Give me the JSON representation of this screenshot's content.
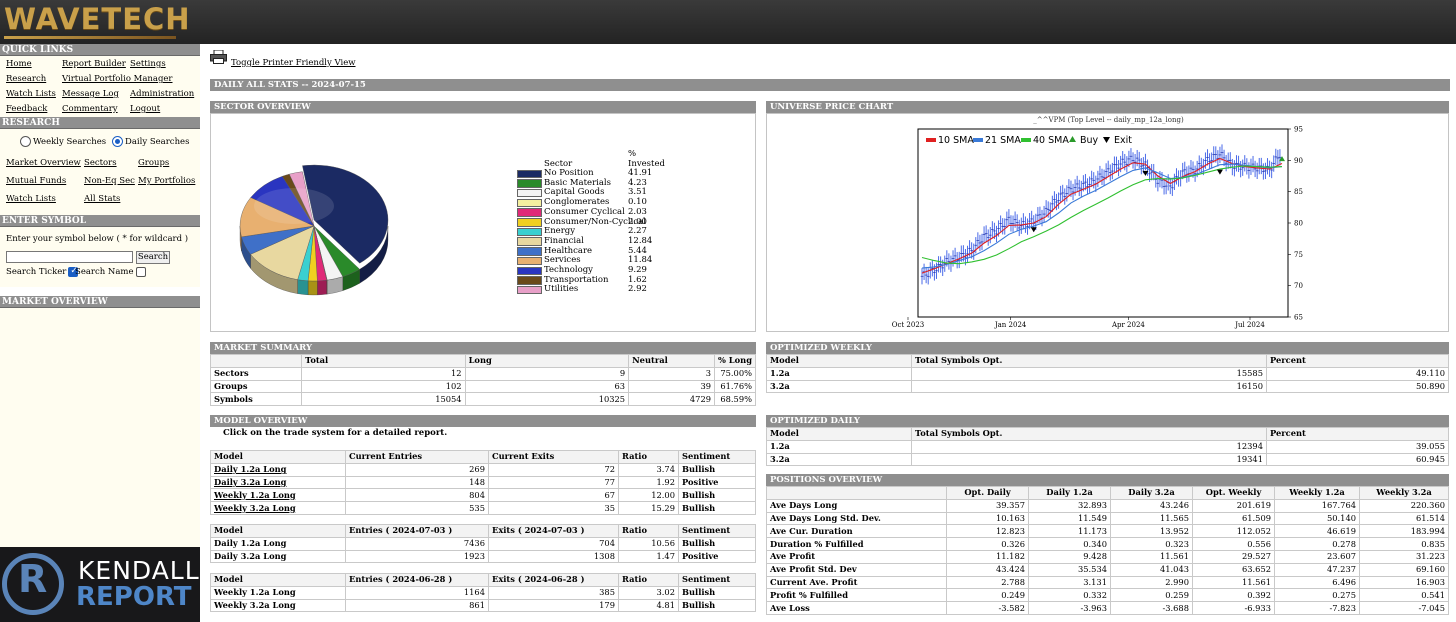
{
  "header": {
    "logo": "WAVETECH"
  },
  "sidebar": {
    "quick_links_title": "QUICK LINKS",
    "quick_links": [
      "Home",
      "Report Builder",
      "Settings",
      "Research",
      "Virtual Portfolio Manager",
      "Watch Lists",
      "Message Log",
      "Administration",
      "Feedback",
      "Commentary",
      "Logout"
    ],
    "research_title": "RESEARCH",
    "weekly_label": "Weekly Searches",
    "daily_label": "Daily Searches",
    "research_links": [
      "Market Overview",
      "Sectors",
      "Groups",
      "Mutual Funds",
      "Non-Eq Sec",
      "My Portfolios",
      "Watch Lists",
      "All Stats"
    ],
    "enter_symbol_title": "ENTER SYMBOL",
    "enter_symbol_hint": "Enter your symbol below ( * for wildcard )",
    "search_button": "Search",
    "search_ticker_label": "Search Ticker",
    "search_name_label": "Search Name",
    "market_overview_title": "MARKET OVERVIEW",
    "promo_line1": "KENDALL",
    "promo_line2": "REPORT",
    "promo_logo_letter": "R"
  },
  "main": {
    "printer_link": "Toggle Printer Friendly View",
    "daily_title": "DAILY ALL STATS -- 2024-07-15",
    "sector_overview": {
      "title": "SECTOR OVERVIEW",
      "col1": "Sector",
      "col2_line1": "%",
      "col2_line2": "Invested",
      "rows": [
        {
          "name": "No Position",
          "value": "41.91",
          "color": "#1b2a63"
        },
        {
          "name": "Basic Materials",
          "value": "4.23",
          "color": "#2a8a2a"
        },
        {
          "name": "Capital Goods",
          "value": "3.51",
          "color": "#f4f4f4"
        },
        {
          "name": "Conglomerates",
          "value": "0.10",
          "color": "#f5f0a0"
        },
        {
          "name": "Consumer Cyclical",
          "value": "2.03",
          "color": "#e02a78"
        },
        {
          "name": "Consumer/Non-Cyclical",
          "value": "2.00",
          "color": "#f0d020"
        },
        {
          "name": "Energy",
          "value": "2.27",
          "color": "#3ad0d0"
        },
        {
          "name": "Financial",
          "value": "12.84",
          "color": "#e8d8a0"
        },
        {
          "name": "Healthcare",
          "value": "5.44",
          "color": "#3f70c8"
        },
        {
          "name": "Services",
          "value": "11.84",
          "color": "#e8b070"
        },
        {
          "name": "Technology",
          "value": "9.29",
          "color": "#2a35c0"
        },
        {
          "name": "Transportation",
          "value": "1.62",
          "color": "#6a4a1a"
        },
        {
          "name": "Utilities",
          "value": "2.92",
          "color": "#e8a0c8"
        }
      ]
    },
    "universe_chart": {
      "title": "UNIVERSE PRICE CHART",
      "subtitle": "_^^VPM (Top Level -- daily_mp_12a_long)"
    },
    "market_summary": {
      "title": "MARKET SUMMARY",
      "headers": [
        "",
        "Total",
        "Long",
        "Neutral",
        "% Long"
      ],
      "rows": [
        [
          "Sectors",
          "12",
          "9",
          "3",
          "75.00%"
        ],
        [
          "Groups",
          "102",
          "63",
          "39",
          "61.76%"
        ],
        [
          "Symbols",
          "15054",
          "10325",
          "4729",
          "68.59%"
        ]
      ]
    },
    "optimized_weekly": {
      "title": "OPTIMIZED WEEKLY",
      "headers": [
        "Model",
        "Total Symbols Opt.",
        "Percent"
      ],
      "rows": [
        [
          "1.2a",
          "15585",
          "49.110"
        ],
        [
          "3.2a",
          "16150",
          "50.890"
        ]
      ]
    },
    "model_overview": {
      "title": "MODEL OVERVIEW",
      "note": "Click on the trade system for a detailed report.",
      "table1": {
        "headers": [
          "Model",
          "Current Entries",
          "Current Exits",
          "Ratio",
          "Sentiment"
        ],
        "rows": [
          [
            "Daily 1.2a Long",
            "269",
            "72",
            "3.74",
            "Bullish"
          ],
          [
            "Daily 3.2a Long",
            "148",
            "77",
            "1.92",
            "Positive"
          ],
          [
            "Weekly 1.2a Long",
            "804",
            "67",
            "12.00",
            "Bullish"
          ],
          [
            "Weekly 3.2a Long",
            "535",
            "35",
            "15.29",
            "Bullish"
          ]
        ]
      },
      "table2": {
        "headers": [
          "Model",
          "Entries ( 2024-07-03 )",
          "Exits ( 2024-07-03 )",
          "Ratio",
          "Sentiment"
        ],
        "rows": [
          [
            "Daily 1.2a Long",
            "7436",
            "704",
            "10.56",
            "Bullish"
          ],
          [
            "Daily 3.2a Long",
            "1923",
            "1308",
            "1.47",
            "Positive"
          ]
        ]
      },
      "table3": {
        "headers": [
          "Model",
          "Entries ( 2024-06-28 )",
          "Exits ( 2024-06-28 )",
          "Ratio",
          "Sentiment"
        ],
        "rows": [
          [
            "Weekly 1.2a Long",
            "1164",
            "385",
            "3.02",
            "Bullish"
          ],
          [
            "Weekly 3.2a Long",
            "861",
            "179",
            "4.81",
            "Bullish"
          ]
        ]
      }
    },
    "optimized_daily": {
      "title": "OPTIMIZED DAILY",
      "headers": [
        "Model",
        "Total Symbols Opt.",
        "Percent"
      ],
      "rows": [
        [
          "1.2a",
          "12394",
          "39.055"
        ],
        [
          "3.2a",
          "19341",
          "60.945"
        ]
      ]
    },
    "positions_overview": {
      "title": "POSITIONS OVERVIEW",
      "headers": [
        "",
        "Opt. Daily",
        "Daily 1.2a",
        "Daily 3.2a",
        "Opt. Weekly",
        "Weekly 1.2a",
        "Weekly 3.2a"
      ],
      "rows": [
        [
          "Ave Days Long",
          "39.357",
          "32.893",
          "43.246",
          "201.619",
          "167.764",
          "220.360"
        ],
        [
          "Ave Days Long Std. Dev.",
          "10.163",
          "11.549",
          "11.565",
          "61.509",
          "50.140",
          "61.514"
        ],
        [
          "Ave Cur. Duration",
          "12.823",
          "11.173",
          "13.952",
          "112.052",
          "46.619",
          "183.994"
        ],
        [
          "Duration % Fulfilled",
          "0.326",
          "0.340",
          "0.323",
          "0.556",
          "0.278",
          "0.835"
        ],
        [
          "Ave Profit",
          "11.182",
          "9.428",
          "11.561",
          "29.527",
          "23.607",
          "31.223"
        ],
        [
          "Ave Profit Std. Dev",
          "43.424",
          "35.534",
          "41.043",
          "63.652",
          "47.237",
          "69.160"
        ],
        [
          "Current Ave. Profit",
          "2.788",
          "3.131",
          "2.990",
          "11.561",
          "6.496",
          "16.903"
        ],
        [
          "Profit % Fulfilled",
          "0.249",
          "0.332",
          "0.259",
          "0.392",
          "0.275",
          "0.541"
        ],
        [
          "Ave Loss",
          "-3.582",
          "-3.963",
          "-3.688",
          "-6.933",
          "-7.823",
          "-7.045"
        ]
      ]
    }
  },
  "chart_data": {
    "type": "line",
    "title": "_^^VPM (Top Level -- daily_mp_12a_long)",
    "x_ticks": [
      "Oct 2023",
      "Jan 2024",
      "Apr 2024",
      "Jul 2024"
    ],
    "y_ticks": [
      65,
      70,
      75,
      80,
      85,
      90,
      95
    ],
    "ylim": [
      65,
      95
    ],
    "legend": [
      "10 SMA",
      "21 SMA",
      "40 SMA",
      "Buy",
      "Exit"
    ],
    "legend_placement": "top-left",
    "series_colors": {
      "price": "#3355dd",
      "sma10": "#e02020",
      "sma21": "#3a7ad8",
      "sma40": "#30c030",
      "buy": "#2a9a2a",
      "exit": "#000000"
    },
    "series": [
      {
        "name": "price",
        "values": [
          71.5,
          72.5,
          73.8,
          74.5,
          75.6,
          77.8,
          78.8,
          80.5,
          79.6,
          80.3,
          81.8,
          84.0,
          85.4,
          86.0,
          86.8,
          88.2,
          89.5,
          90.3,
          89.2,
          86.8,
          85.8,
          88.0,
          88.4,
          90.0,
          91.0,
          89.2,
          89.0,
          88.8,
          88.5,
          91.5
        ]
      },
      {
        "name": "10 SMA",
        "values": [
          72.0,
          72.7,
          73.5,
          74.3,
          75.2,
          76.8,
          78.0,
          79.6,
          79.7,
          80.0,
          81.0,
          83.0,
          84.6,
          85.4,
          86.2,
          87.4,
          88.6,
          89.6,
          89.4,
          87.5,
          86.3,
          87.4,
          88.2,
          89.4,
          90.3,
          89.5,
          89.0,
          88.8,
          88.6,
          89.5
        ]
      },
      {
        "name": "21 SMA",
        "values": [
          72.8,
          73.0,
          73.4,
          74.0,
          74.6,
          75.6,
          76.8,
          78.2,
          79.0,
          79.5,
          80.2,
          81.6,
          83.2,
          84.3,
          85.2,
          86.3,
          87.4,
          88.4,
          88.8,
          88.0,
          87.1,
          87.3,
          87.7,
          88.5,
          89.3,
          89.4,
          89.2,
          89.0,
          88.8,
          89.0
        ]
      },
      {
        "name": "40 SMA",
        "values": [
          74.5,
          74.0,
          73.6,
          73.5,
          73.8,
          74.2,
          74.9,
          75.9,
          77.0,
          77.8,
          78.7,
          79.7,
          80.9,
          82.0,
          83.0,
          84.0,
          85.1,
          86.1,
          86.9,
          87.1,
          87.0,
          87.2,
          87.6,
          88.1,
          88.6,
          88.9,
          89.1,
          89.0,
          88.9,
          89.0
        ]
      }
    ],
    "exit_markers": [
      {
        "index": 9,
        "value": 79.0
      },
      {
        "index": 18,
        "value": 88.0
      },
      {
        "index": 24,
        "value": 88.2
      }
    ],
    "buy_markers": [
      {
        "index": 29,
        "value": 90.2
      }
    ]
  }
}
